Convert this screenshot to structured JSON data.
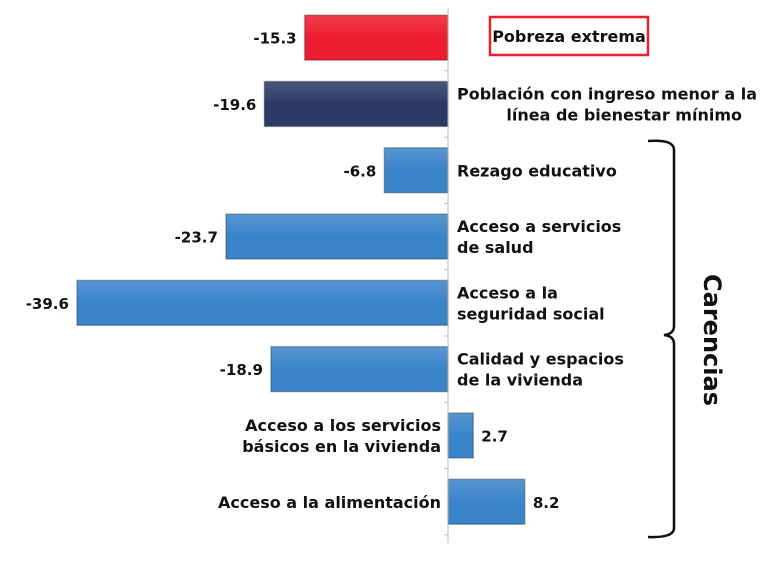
{
  "chart_data": {
    "type": "bar",
    "orientation": "horizontal",
    "categories": [
      [
        "Pobreza extrema"
      ],
      [
        "Población con ingreso menor a la",
        "línea de bienestar mínimo"
      ],
      [
        "Rezago educativo"
      ],
      [
        "Acceso a servicios",
        "de salud"
      ],
      [
        "Acceso a  la",
        "seguridad social"
      ],
      [
        "Calidad y espacios",
        "de la vivienda"
      ],
      [
        "Acceso a los servicios",
        "básicos en la vivienda"
      ],
      [
        "Acceso a la alimentación"
      ]
    ],
    "values": [
      -15.3,
      -19.6,
      -6.8,
      -23.7,
      -39.6,
      -18.9,
      2.7,
      8.2
    ],
    "value_labels": [
      "-15.3",
      "-19.6",
      "-6.8",
      "-23.7",
      "-39.6",
      "-18.9",
      "2.7",
      "8.2"
    ],
    "bar_colors": [
      "#ed1c2e",
      "#2b3a66",
      "#3a84c9",
      "#3a84c9",
      "#3a84c9",
      "#3a84c9",
      "#3a84c9",
      "#3a84c9"
    ],
    "highlight_box_color": "#e8202f",
    "group_bracket_label": "Carencias",
    "xlim": [
      -40,
      10
    ],
    "grid": false,
    "legend": "none"
  }
}
